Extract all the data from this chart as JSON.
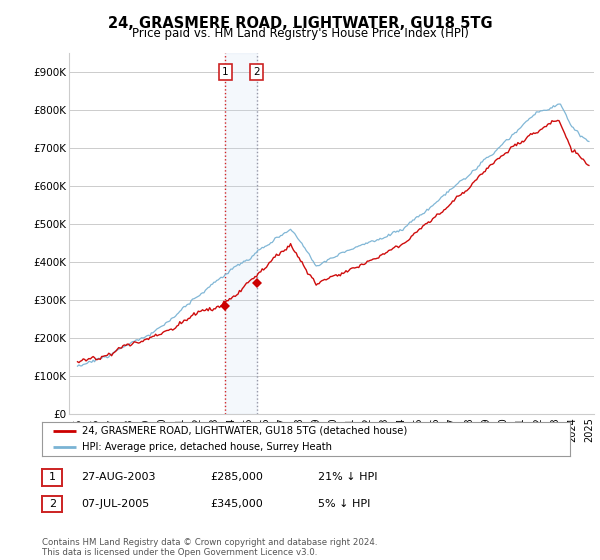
{
  "title": "24, GRASMERE ROAD, LIGHTWATER, GU18 5TG",
  "subtitle": "Price paid vs. HM Land Registry's House Price Index (HPI)",
  "ylim": [
    0,
    950000
  ],
  "yticks": [
    0,
    100000,
    200000,
    300000,
    400000,
    500000,
    600000,
    700000,
    800000,
    900000
  ],
  "ytick_labels": [
    "£0",
    "£100K",
    "£200K",
    "£300K",
    "£400K",
    "£500K",
    "£600K",
    "£700K",
    "£800K",
    "£900K"
  ],
  "sale1_year": 2003.66,
  "sale1_price": 285000,
  "sale1_label": "1",
  "sale2_year": 2005.51,
  "sale2_price": 345000,
  "sale2_label": "2",
  "hpi_color": "#7ab3d4",
  "price_color": "#cc0000",
  "background_color": "#ffffff",
  "grid_color": "#cccccc",
  "legend_label_red": "24, GRASMERE ROAD, LIGHTWATER, GU18 5TG (detached house)",
  "legend_label_blue": "HPI: Average price, detached house, Surrey Heath",
  "table_row1": [
    "1",
    "27-AUG-2003",
    "£285,000",
    "21% ↓ HPI"
  ],
  "table_row2": [
    "2",
    "07-JUL-2005",
    "£345,000",
    "5% ↓ HPI"
  ],
  "footnote": "Contains HM Land Registry data © Crown copyright and database right 2024.\nThis data is licensed under the Open Government Licence v3.0.",
  "x_start_year": 1995,
  "x_end_year": 2025
}
